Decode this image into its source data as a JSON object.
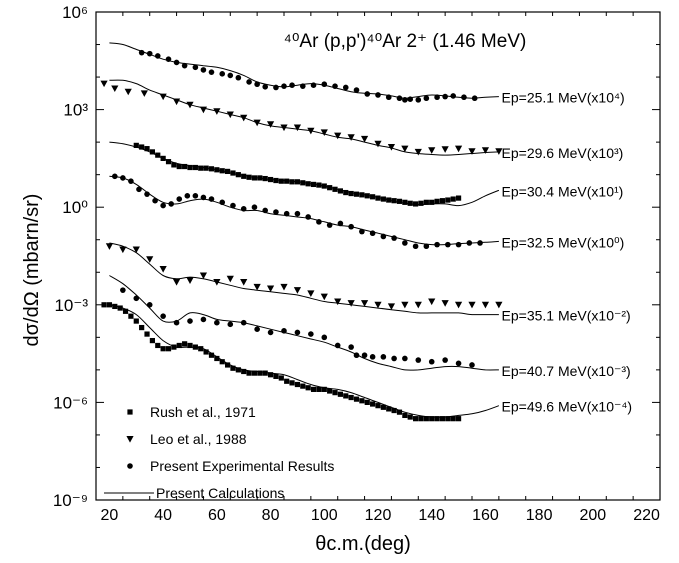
{
  "chart_data": {
    "type": "scatter",
    "title": "⁴⁰Ar (p,p')⁴⁰Ar 2⁺ (1.46 MeV)",
    "xlabel": "θc.m.(deg)",
    "ylabel": "dσ/dΩ (mbarn/sr)",
    "xlim": [
      15,
      225
    ],
    "ylim_log10": [
      -9,
      6
    ],
    "yscale": "log",
    "grid": false,
    "x_ticks": [
      20,
      40,
      60,
      80,
      100,
      120,
      140,
      160,
      180,
      200,
      220
    ],
    "y_ticks": [
      {
        "exp": -9,
        "label": "10⁻⁹"
      },
      {
        "exp": -6,
        "label": "10⁻⁶"
      },
      {
        "exp": -3,
        "label": "10⁻³"
      },
      {
        "exp": 0,
        "label": "10⁰"
      },
      {
        "exp": 3,
        "label": "10³"
      },
      {
        "exp": 6,
        "label": "10⁶"
      }
    ],
    "legend": {
      "placement": "bottom-left",
      "entries": [
        {
          "label": "Rush et al., 1971",
          "marker": "square"
        },
        {
          "label": "Leo et al., 1988",
          "marker": "triangle-down"
        },
        {
          "label": "Present Experimental Results",
          "marker": "circle"
        },
        {
          "label": "Present Calculations",
          "marker": "line"
        }
      ]
    },
    "series": [
      {
        "label": "Ep=25.1 MeV(x10⁴)",
        "marker": "circle",
        "data_x": [
          32,
          35,
          38,
          42,
          45,
          48,
          52,
          55,
          58,
          62,
          65,
          68,
          72,
          75,
          78,
          82,
          85,
          88,
          92,
          96,
          100,
          104,
          108,
          112,
          116,
          120,
          124,
          128,
          130,
          132,
          135,
          138,
          142,
          145,
          148,
          152,
          156
        ],
        "data_log10y": [
          4.75,
          4.72,
          4.65,
          4.55,
          4.45,
          4.35,
          4.3,
          4.22,
          4.15,
          4.1,
          4.05,
          3.98,
          3.85,
          3.78,
          3.7,
          3.68,
          3.72,
          3.75,
          3.72,
          3.75,
          3.78,
          3.72,
          3.68,
          3.6,
          3.48,
          3.45,
          3.38,
          3.35,
          3.3,
          3.32,
          3.3,
          3.35,
          3.38,
          3.4,
          3.42,
          3.38,
          3.35
        ],
        "calc_x": [
          20,
          25,
          30,
          35,
          40,
          45,
          50,
          55,
          60,
          65,
          70,
          75,
          80,
          85,
          90,
          95,
          100,
          105,
          110,
          115,
          120,
          125,
          130,
          135,
          140,
          145,
          150,
          155,
          160,
          165
        ],
        "calc_log10y": [
          5.05,
          5.0,
          4.85,
          4.7,
          4.55,
          4.45,
          4.4,
          4.35,
          4.3,
          4.2,
          4.05,
          3.85,
          3.75,
          3.7,
          3.75,
          3.8,
          3.75,
          3.65,
          3.55,
          3.5,
          3.48,
          3.42,
          3.35,
          3.4,
          3.45,
          3.42,
          3.38,
          3.35,
          3.38,
          3.4
        ]
      },
      {
        "label": "Ep=29.6 MeV(x10³)",
        "marker": "triangle-down",
        "data_x": [
          18,
          22,
          27,
          33,
          40,
          45,
          50,
          55,
          60,
          65,
          70,
          75,
          80,
          85,
          90,
          95,
          100,
          105,
          110,
          115,
          120,
          125,
          130,
          135,
          140,
          145,
          150,
          155,
          160,
          165
        ],
        "data_log10y": [
          3.8,
          3.65,
          3.55,
          3.5,
          3.4,
          3.25,
          3.15,
          3.0,
          2.95,
          2.85,
          2.75,
          2.6,
          2.55,
          2.45,
          2.45,
          2.35,
          2.3,
          2.2,
          2.15,
          2.1,
          1.95,
          1.85,
          1.8,
          1.7,
          1.75,
          1.78,
          1.8,
          1.72,
          1.75,
          1.72
        ],
        "calc_x": [
          20,
          25,
          30,
          35,
          40,
          45,
          50,
          55,
          60,
          65,
          70,
          75,
          80,
          85,
          90,
          95,
          100,
          105,
          110,
          115,
          120,
          125,
          130,
          135,
          140,
          145,
          150,
          155,
          160,
          165
        ],
        "calc_log10y": [
          3.9,
          3.9,
          3.8,
          3.6,
          3.45,
          3.3,
          3.15,
          3.05,
          2.95,
          2.85,
          2.75,
          2.6,
          2.5,
          2.45,
          2.4,
          2.35,
          2.25,
          2.15,
          2.1,
          2.0,
          1.9,
          1.82,
          1.7,
          1.65,
          1.62,
          1.6,
          1.62,
          1.65,
          1.68,
          1.7
        ]
      },
      {
        "label": "Ep=30.4 MeV(x10¹)",
        "marker": "square",
        "data_x": [
          30,
          32,
          34,
          36,
          38,
          40,
          42,
          44,
          46,
          48,
          50,
          52,
          54,
          56,
          58,
          60,
          62,
          64,
          66,
          68,
          70,
          72,
          74,
          76,
          78,
          80,
          82,
          84,
          86,
          88,
          90,
          92,
          94,
          96,
          98,
          100,
          102,
          104,
          106,
          108,
          110,
          112,
          114,
          116,
          118,
          120,
          122,
          124,
          126,
          128,
          130,
          132,
          134,
          136,
          138,
          140,
          142,
          144,
          146,
          148,
          150
        ],
        "data_log10y": [
          1.9,
          1.85,
          1.8,
          1.7,
          1.6,
          1.5,
          1.4,
          1.3,
          1.25,
          1.25,
          1.22,
          1.22,
          1.2,
          1.2,
          1.18,
          1.15,
          1.12,
          1.1,
          1.05,
          1.0,
          0.95,
          0.92,
          0.9,
          0.9,
          0.88,
          0.85,
          0.82,
          0.8,
          0.8,
          0.78,
          0.78,
          0.75,
          0.72,
          0.7,
          0.68,
          0.65,
          0.6,
          0.55,
          0.5,
          0.45,
          0.42,
          0.4,
          0.38,
          0.35,
          0.32,
          0.28,
          0.25,
          0.22,
          0.2,
          0.18,
          0.15,
          0.12,
          0.1,
          0.12,
          0.15,
          0.15,
          0.18,
          0.2,
          0.22,
          0.25,
          0.28
        ],
        "calc_x": [
          20,
          25,
          30,
          35,
          40,
          45,
          50,
          55,
          60,
          65,
          70,
          75,
          80,
          85,
          90,
          95,
          100,
          105,
          110,
          115,
          120,
          125,
          130,
          135,
          140,
          145,
          150,
          155,
          160,
          165
        ],
        "calc_log10y": [
          2.0,
          1.95,
          1.85,
          1.7,
          1.5,
          1.35,
          1.28,
          1.22,
          1.15,
          1.05,
          0.98,
          0.9,
          0.85,
          0.82,
          0.78,
          0.72,
          0.65,
          0.55,
          0.45,
          0.38,
          0.3,
          0.2,
          0.12,
          0.08,
          0.1,
          0.1,
          0.05,
          0.15,
          0.35,
          0.52
        ]
      },
      {
        "label": "Ep=32.5 MeV(x10⁰)",
        "marker": "circle",
        "data_x": [
          22,
          25,
          28,
          31,
          34,
          37,
          40,
          43,
          46,
          49,
          52,
          55,
          58,
          62,
          66,
          70,
          74,
          78,
          82,
          86,
          90,
          94,
          98,
          102,
          106,
          110,
          114,
          118,
          122,
          126,
          130,
          134,
          138,
          142,
          146,
          150,
          154,
          158
        ],
        "data_log10y": [
          0.95,
          0.9,
          0.8,
          0.55,
          0.4,
          0.2,
          0.05,
          0.1,
          0.25,
          0.35,
          0.35,
          0.3,
          0.25,
          0.15,
          0.05,
          -0.05,
          0.0,
          -0.1,
          -0.15,
          -0.2,
          -0.2,
          -0.3,
          -0.45,
          -0.55,
          -0.5,
          -0.6,
          -0.75,
          -0.8,
          -0.9,
          -0.95,
          -1.1,
          -1.2,
          -1.2,
          -1.15,
          -1.15,
          -1.15,
          -1.1,
          -1.1
        ],
        "calc_x": [
          20,
          25,
          30,
          35,
          40,
          45,
          50,
          55,
          60,
          65,
          70,
          75,
          80,
          85,
          90,
          95,
          100,
          105,
          110,
          115,
          120,
          125,
          130,
          135,
          140,
          145,
          150,
          155,
          160,
          165
        ],
        "calc_log10y": [
          0.95,
          0.9,
          0.7,
          0.4,
          0.15,
          0.1,
          0.2,
          0.25,
          0.15,
          0.0,
          -0.1,
          -0.1,
          -0.2,
          -0.25,
          -0.3,
          -0.35,
          -0.45,
          -0.55,
          -0.6,
          -0.7,
          -0.8,
          -0.9,
          -1.0,
          -1.1,
          -1.15,
          -1.15,
          -1.12,
          -1.1,
          -1.08,
          -1.05
        ]
      },
      {
        "label": "Ep=35.1 MeV(x10⁻²)",
        "marker": "triangle-down",
        "data_x": [
          20,
          25,
          30,
          35,
          40,
          45,
          50,
          55,
          60,
          65,
          70,
          75,
          80,
          85,
          90,
          95,
          100,
          105,
          110,
          115,
          120,
          125,
          130,
          135,
          140,
          145,
          150,
          155,
          160,
          165
        ],
        "data_log10y": [
          -1.2,
          -1.3,
          -1.3,
          -1.6,
          -1.9,
          -2.3,
          -2.25,
          -2.1,
          -2.3,
          -2.2,
          -2.3,
          -2.45,
          -2.5,
          -2.45,
          -2.55,
          -2.65,
          -2.75,
          -2.9,
          -2.95,
          -2.95,
          -3.0,
          -3.05,
          -3.0,
          -3.0,
          -2.9,
          -2.95,
          -3.0,
          -3.0,
          -3.0,
          -3.0
        ],
        "calc_x": [
          20,
          25,
          30,
          35,
          40,
          45,
          50,
          55,
          60,
          65,
          70,
          75,
          80,
          85,
          90,
          95,
          100,
          105,
          110,
          115,
          120,
          125,
          130,
          135,
          140,
          145,
          150,
          155,
          160,
          165
        ],
        "calc_log10y": [
          -1.1,
          -1.2,
          -1.4,
          -1.75,
          -2.1,
          -2.2,
          -2.15,
          -2.2,
          -2.3,
          -2.4,
          -2.5,
          -2.55,
          -2.6,
          -2.65,
          -2.7,
          -2.8,
          -2.9,
          -2.95,
          -3.0,
          -3.05,
          -3.1,
          -3.15,
          -3.2,
          -3.25,
          -3.25,
          -3.25,
          -3.25,
          -3.3,
          -3.3,
          -3.3
        ]
      },
      {
        "label": "Ep=40.7 MeV(x10⁻³)",
        "marker": "circle",
        "data_x": [
          25,
          30,
          35,
          40,
          45,
          50,
          55,
          60,
          65,
          70,
          75,
          80,
          85,
          90,
          95,
          100,
          105,
          110,
          112,
          115,
          118,
          122,
          126,
          130,
          135,
          140,
          145,
          150,
          155
        ],
        "data_log10y": [
          -2.55,
          -2.8,
          -3.0,
          -3.35,
          -3.55,
          -3.5,
          -3.45,
          -3.55,
          -3.6,
          -3.55,
          -3.75,
          -3.85,
          -3.8,
          -3.85,
          -3.9,
          -4.0,
          -4.25,
          -4.3,
          -4.55,
          -4.55,
          -4.6,
          -4.6,
          -4.65,
          -4.65,
          -4.7,
          -4.75,
          -4.7,
          -4.8,
          -4.85
        ],
        "calc_x": [
          20,
          25,
          30,
          35,
          40,
          45,
          50,
          55,
          60,
          65,
          70,
          75,
          80,
          85,
          90,
          95,
          100,
          105,
          110,
          115,
          120,
          125,
          130,
          135,
          140,
          145,
          150,
          155,
          160,
          165
        ],
        "calc_log10y": [
          -2.1,
          -2.35,
          -2.7,
          -3.1,
          -3.5,
          -3.5,
          -3.25,
          -3.3,
          -3.45,
          -3.5,
          -3.55,
          -3.65,
          -3.75,
          -3.85,
          -3.95,
          -4.05,
          -4.15,
          -4.3,
          -4.45,
          -4.65,
          -4.8,
          -4.9,
          -5.0,
          -5.0,
          -4.95,
          -4.9,
          -4.9,
          -4.95,
          -5.0,
          -5.0
        ]
      },
      {
        "label": "Ep=49.6 MeV(x10⁻⁴)",
        "marker": "square",
        "data_x": [
          18,
          20,
          22,
          24,
          26,
          28,
          30,
          32,
          34,
          36,
          38,
          40,
          42,
          44,
          46,
          48,
          50,
          52,
          54,
          56,
          58,
          60,
          62,
          64,
          66,
          68,
          70,
          72,
          74,
          76,
          78,
          80,
          82,
          84,
          86,
          88,
          90,
          92,
          94,
          96,
          98,
          100,
          102,
          104,
          106,
          108,
          110,
          112,
          114,
          116,
          118,
          120,
          122,
          124,
          126,
          128,
          130,
          132,
          134,
          136,
          138,
          140,
          142,
          144,
          146,
          148,
          150
        ],
        "data_log10y": [
          -3.0,
          -3.0,
          -3.05,
          -3.1,
          -3.2,
          -3.35,
          -3.5,
          -3.7,
          -3.9,
          -4.1,
          -4.25,
          -4.35,
          -4.35,
          -4.3,
          -4.25,
          -4.2,
          -4.25,
          -4.3,
          -4.35,
          -4.45,
          -4.55,
          -4.65,
          -4.75,
          -4.85,
          -4.95,
          -5.0,
          -5.05,
          -5.1,
          -5.1,
          -5.1,
          -5.1,
          -5.15,
          -5.2,
          -5.25,
          -5.35,
          -5.4,
          -5.45,
          -5.5,
          -5.55,
          -5.6,
          -5.6,
          -5.6,
          -5.65,
          -5.7,
          -5.75,
          -5.8,
          -5.85,
          -5.9,
          -5.95,
          -6.0,
          -6.05,
          -6.1,
          -6.15,
          -6.2,
          -6.25,
          -6.3,
          -6.4,
          -6.45,
          -6.5,
          -6.5,
          -6.5,
          -6.5,
          -6.5,
          -6.5,
          -6.5,
          -6.5,
          -6.5
        ],
        "calc_x": [
          20,
          25,
          30,
          35,
          40,
          45,
          50,
          55,
          60,
          65,
          70,
          75,
          80,
          85,
          90,
          95,
          100,
          105,
          110,
          115,
          120,
          125,
          130,
          135,
          140,
          145,
          150,
          155,
          160,
          165
        ],
        "calc_log10y": [
          -3.0,
          -3.1,
          -3.3,
          -3.7,
          -4.1,
          -4.3,
          -4.3,
          -4.35,
          -4.6,
          -4.85,
          -5.0,
          -5.05,
          -5.1,
          -5.15,
          -5.3,
          -5.45,
          -5.55,
          -5.6,
          -5.7,
          -5.85,
          -6.0,
          -6.15,
          -6.3,
          -6.4,
          -6.45,
          -6.45,
          -6.4,
          -6.35,
          -6.25,
          -6.1
        ]
      }
    ]
  }
}
